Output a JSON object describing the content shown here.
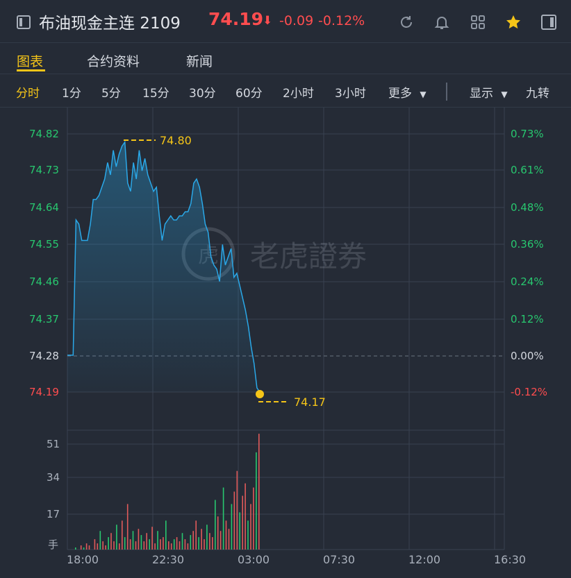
{
  "header": {
    "title": "布油现金主连 2109",
    "price": "74.19",
    "arrow": "⬇",
    "change": "-0.09",
    "change_pct": "-0.12%"
  },
  "tabs": [
    {
      "label": "图表",
      "active": true
    },
    {
      "label": "合约资料",
      "active": false
    },
    {
      "label": "新闻",
      "active": false
    }
  ],
  "periods": [
    {
      "label": "分时",
      "active": true
    },
    {
      "label": "1分"
    },
    {
      "label": "5分"
    },
    {
      "label": "15分"
    },
    {
      "label": "30分"
    },
    {
      "label": "60分"
    },
    {
      "label": "2小时"
    },
    {
      "label": "3小时"
    },
    {
      "label": "更多"
    }
  ],
  "toolbar": {
    "display_label": "显示",
    "nine_label": "九转"
  },
  "icons": [
    "refresh-icon",
    "bell-icon",
    "grid-icon",
    "star-icon",
    "sidebar-toggle-icon"
  ],
  "colors": {
    "accent": "#f5c518",
    "up": "#28c76f",
    "down": "#ff4d4f",
    "line": "#2aa8e8"
  },
  "watermark": "老虎證券",
  "chart_data": {
    "type": "line",
    "price_axis": [
      "74.82",
      "74.73",
      "74.64",
      "74.55",
      "74.46",
      "74.37",
      "74.28",
      "74.19"
    ],
    "pct_axis": [
      "0.73%",
      "0.61%",
      "0.48%",
      "0.36%",
      "0.24%",
      "0.12%",
      "0.00%",
      "-0.12%"
    ],
    "prev_close": 74.28,
    "high_label": "74.80",
    "low_label": "74.17",
    "x_ticks": [
      "18:00",
      "22:30",
      "03:00",
      "07:30",
      "12:00",
      "16:30"
    ],
    "volume_axis": [
      "51",
      "34",
      "17"
    ],
    "volume_unit": "手",
    "ylim": [
      74.17,
      74.82
    ],
    "price": [
      74.28,
      74.28,
      74.28,
      74.61,
      74.6,
      74.56,
      74.56,
      74.56,
      74.6,
      74.66,
      74.66,
      74.67,
      74.69,
      74.71,
      74.75,
      74.72,
      74.78,
      74.74,
      74.77,
      74.79,
      74.8,
      74.7,
      74.68,
      74.75,
      74.71,
      74.78,
      74.73,
      74.76,
      74.72,
      74.7,
      74.68,
      74.69,
      74.62,
      74.56,
      74.6,
      74.61,
      74.62,
      74.61,
      74.61,
      74.62,
      74.62,
      74.63,
      74.63,
      74.65,
      74.7,
      74.71,
      74.69,
      74.65,
      74.6,
      74.58,
      74.52,
      74.5,
      74.49,
      74.46,
      74.55,
      74.5,
      74.52,
      74.54,
      74.47,
      74.48,
      74.45,
      74.42,
      74.39,
      74.35,
      74.3,
      74.26,
      74.2,
      74.19
    ],
    "volume": [
      1,
      0,
      2,
      1,
      3,
      2,
      0,
      5,
      3,
      9,
      4,
      2,
      6,
      8,
      4,
      12,
      3,
      14,
      6,
      22,
      5,
      9,
      4,
      10,
      7,
      4,
      8,
      5,
      11,
      3,
      9,
      5,
      6,
      14,
      4,
      3,
      5,
      6,
      4,
      8,
      5,
      3,
      7,
      9,
      14,
      6,
      10,
      5,
      12,
      8,
      6,
      24,
      16,
      9,
      30,
      14,
      10,
      22,
      28,
      38,
      18,
      26,
      32,
      14,
      22,
      30,
      47,
      56
    ]
  }
}
